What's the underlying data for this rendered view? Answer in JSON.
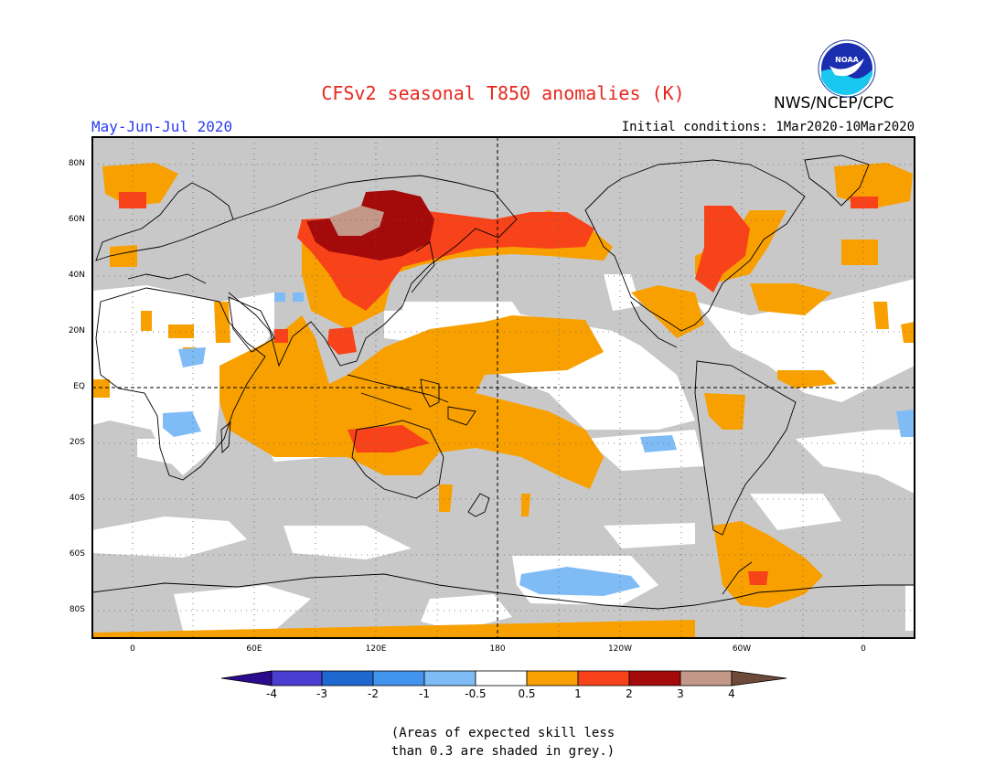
{
  "header": {
    "title": "CFSv2 seasonal T850 anomalies (K)",
    "agency": "NWS/NCEP/CPC",
    "period": "May-Jun-Jul 2020",
    "initial_conditions": "Initial conditions: 1Mar2020-10Mar2020",
    "logo_text": "NOAA"
  },
  "axes": {
    "lat_labels": [
      "80N",
      "60N",
      "40N",
      "20N",
      "EQ",
      "20S",
      "40S",
      "60S",
      "80S"
    ],
    "lon_labels": [
      "0",
      "60E",
      "120E",
      "180",
      "120W",
      "60W",
      "0"
    ]
  },
  "colorbar": {
    "labels": [
      "-4",
      "-3",
      "-2",
      "-1",
      "-0.5",
      "0.5",
      "1",
      "2",
      "3",
      "4"
    ],
    "colors": [
      "#2b0a8c",
      "#4a3ed0",
      "#1f68d0",
      "#4294ee",
      "#7fbcf6",
      "#ffffff",
      "#f8a000",
      "#f8421a",
      "#a50a0a",
      "#c49888",
      "#6e4a3a"
    ]
  },
  "note": {
    "line1": "(Areas of expected skill less",
    "line2": "than 0.3 are shaded in grey.)"
  },
  "colors": {
    "skill_grey": "#c8c8c8",
    "title_red": "#e8271e",
    "period_blue": "#2a3cf0"
  }
}
